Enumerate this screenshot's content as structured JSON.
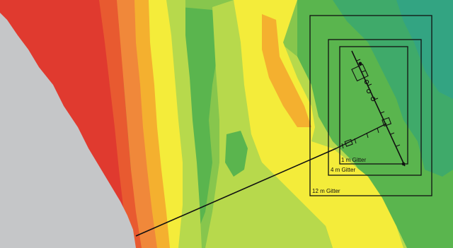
{
  "map": {
    "grid_labels": [
      "1 m Gitter",
      "4 m Gitter",
      "12 m Gitter"
    ],
    "colors": {
      "land": "#c5c6c8",
      "deep_red": "#e03a2f",
      "red_orange": "#e85a30",
      "orange": "#f0883a",
      "amber": "#f4b02f",
      "yellow": "#f4ec3a",
      "yellow_green": "#b7d94c",
      "light_green": "#87c64d",
      "green": "#5ab54e",
      "teal_green": "#3faa6a",
      "teal": "#33a482",
      "line": "#111111"
    }
  }
}
